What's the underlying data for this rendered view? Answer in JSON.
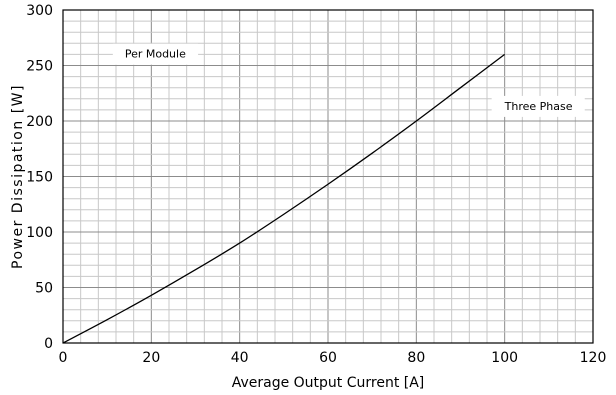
{
  "chart_data": {
    "type": "line",
    "title": "",
    "xlabel": "Average Output Current [A]",
    "ylabel": "Power Dissipation [W]",
    "xlim": [
      0,
      120
    ],
    "ylim": [
      0,
      300
    ],
    "x_ticks": [
      0,
      20,
      40,
      60,
      80,
      100,
      120
    ],
    "y_ticks": [
      0,
      50,
      100,
      150,
      200,
      250,
      300
    ],
    "x_tick_labels": [
      "0",
      "20",
      "40",
      "60",
      "80",
      "100",
      "120"
    ],
    "y_tick_labels": [
      "0",
      "50",
      "100",
      "150",
      "200",
      "250",
      "300"
    ],
    "grid": true,
    "x_minor_step": 4,
    "y_minor_step": 10,
    "annotations": [
      {
        "text": "Per Module",
        "x": 14,
        "y": 257
      },
      {
        "text": "Three Phase",
        "x": 100,
        "y": 210
      }
    ],
    "series": [
      {
        "name": "",
        "x": [
          0,
          10,
          20,
          30,
          40,
          50,
          60,
          70,
          80,
          90,
          100
        ],
        "y": [
          0,
          21,
          43,
          66,
          90,
          116,
          143,
          171,
          200,
          230,
          260
        ],
        "color": "#000000"
      }
    ]
  }
}
